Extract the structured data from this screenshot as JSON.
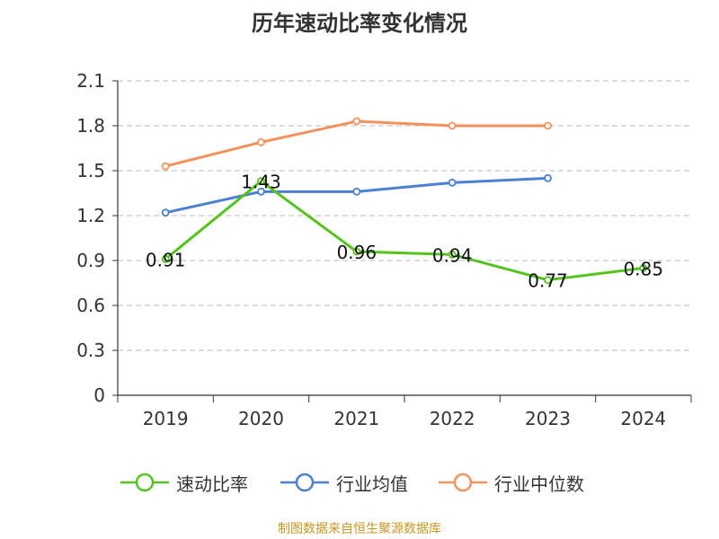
{
  "chart_data": {
    "type": "line",
    "title": "历年速动比率变化情况",
    "categories": [
      "2019",
      "2020",
      "2021",
      "2022",
      "2023",
      "2024"
    ],
    "y_ticks": [
      "0",
      "0.3",
      "0.6",
      "0.9",
      "1.2",
      "1.5",
      "1.8",
      "2.1"
    ],
    "ylim": [
      0,
      2.1
    ],
    "grid": "horizontal-dashed",
    "legend_position": "bottom",
    "series": [
      {
        "name": "速动比率",
        "color": "#52c41a",
        "values": [
          0.91,
          1.43,
          0.96,
          0.94,
          0.77,
          0.85
        ],
        "labels": [
          "0.91",
          "1.43",
          "0.96",
          "0.94",
          "0.77",
          "0.85"
        ],
        "show_labels": true
      },
      {
        "name": "行业均值",
        "color": "#4a7fd6",
        "values": [
          1.22,
          1.36,
          1.36,
          1.42,
          1.45,
          null
        ],
        "show_labels": false
      },
      {
        "name": "行业中位数",
        "color": "#f5905a",
        "values": [
          1.53,
          1.69,
          1.83,
          1.8,
          1.8,
          null
        ],
        "show_labels": false
      }
    ]
  },
  "source_note": "制图数据来自恒生聚源数据库"
}
